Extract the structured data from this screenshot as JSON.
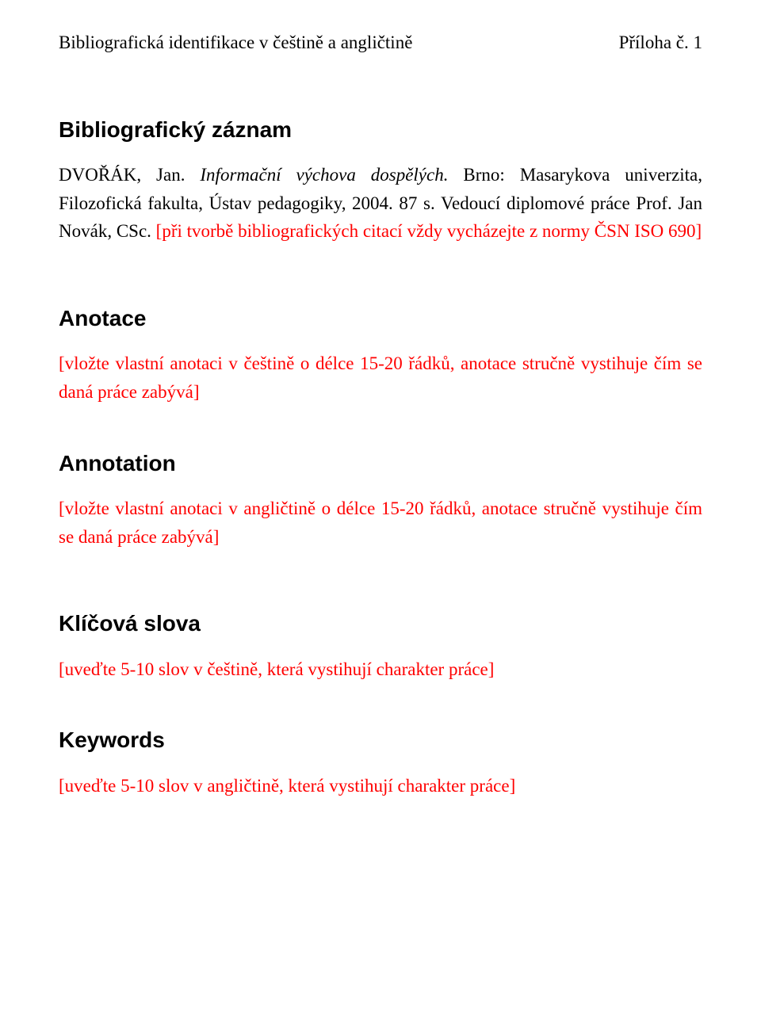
{
  "header": {
    "left": "Bibliografická identifikace v češtině a angličtině",
    "right": "Příloha č. 1"
  },
  "sections": {
    "bibrecord": {
      "heading": "Bibliografický záznam",
      "part1": "DVOŘÁK, Jan. ",
      "title_italic": "Informační výchova dospělých.",
      "part2": " Brno: Masarykova univerzita, Filozofická fakulta, Ústav pedagogiky, 2004. 87 s. Vedoucí diplomové práce Prof. Jan Novák, CSc. ",
      "red": "[při tvorbě bibliografických citací vždy vycházejte z normy ČSN ISO 690]"
    },
    "anotace": {
      "heading": "Anotace",
      "red": "[vložte vlastní anotaci v češtině o délce 15-20 řádků, anotace stručně vystihuje čím se daná práce zabývá]"
    },
    "annotation": {
      "heading": "Annotation",
      "red": "[vložte vlastní anotaci v angličtině o délce 15-20 řádků, anotace stručně vystihuje čím se daná práce zabývá]"
    },
    "klicova": {
      "heading": "Klíčová slova",
      "red": "[uveďte 5-10 slov v češtině, která vystihují charakter práce]"
    },
    "keywords": {
      "heading": "Keywords",
      "red": "[uveďte 5-10 slov v angličtině, která vystihují charakter práce]"
    }
  },
  "colors": {
    "text": "#000000",
    "red": "#ff0000",
    "background": "#ffffff"
  },
  "fonts": {
    "body": "Times New Roman",
    "heading": "Arial"
  }
}
